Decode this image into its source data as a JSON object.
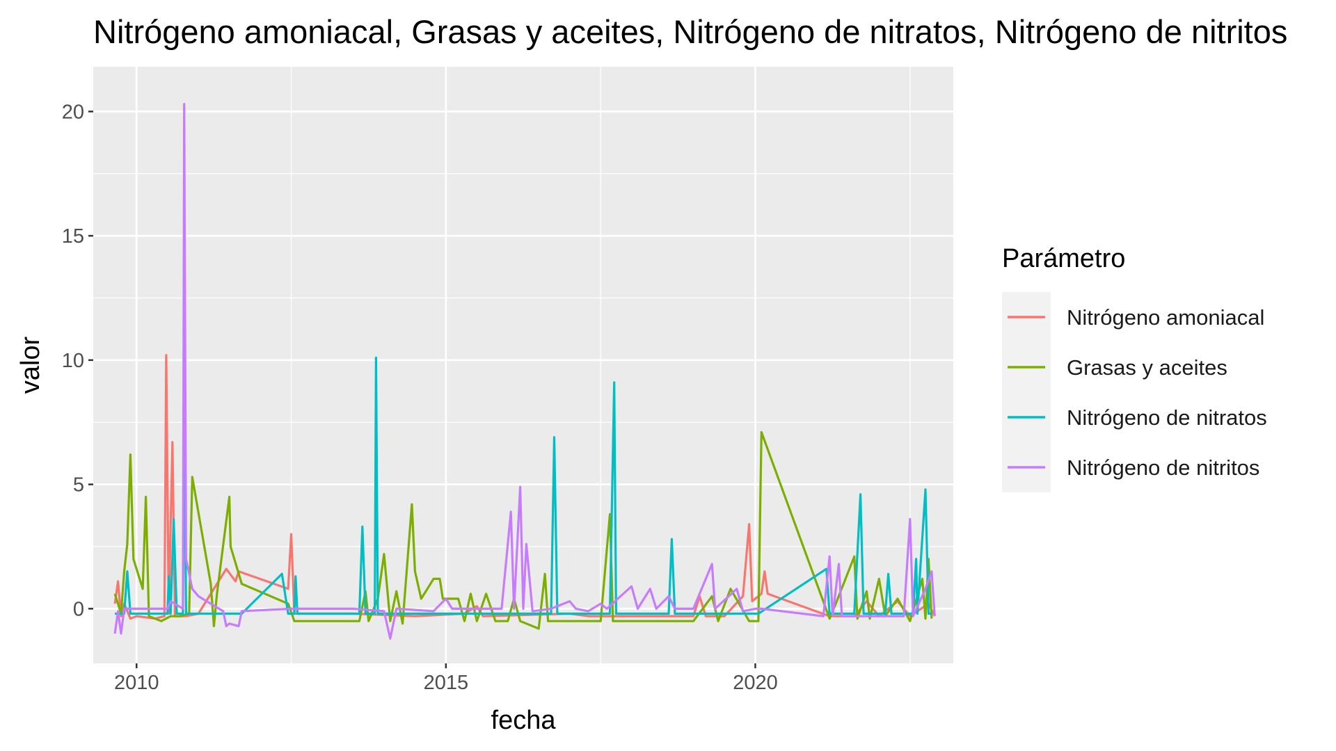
{
  "chart_data": {
    "type": "line",
    "title": "Nitrógeno amoniacal, Grasas y aceites, Nitrógeno de nitratos, Nitrógeno de nitritos",
    "xlabel": "fecha",
    "ylabel": "valor",
    "xlim": [
      2009.3,
      2023.2
    ],
    "ylim": [
      -2.2,
      21.8
    ],
    "x_ticks": [
      2010,
      2015,
      2020
    ],
    "x_tick_labels": [
      "2010",
      "2015",
      "2020"
    ],
    "y_ticks": [
      0,
      5,
      10,
      15,
      20
    ],
    "y_tick_labels": [
      "0",
      "5",
      "10",
      "15",
      "20"
    ],
    "grid": true,
    "legend": {
      "title": "Parámetro",
      "position": "right"
    },
    "series": [
      {
        "name": "Nitrógeno amoniacal",
        "color": "#F8766D",
        "points": [
          [
            2009.65,
            0.2
          ],
          [
            2009.7,
            1.1
          ],
          [
            2009.75,
            -0.3
          ],
          [
            2009.8,
            0.2
          ],
          [
            2009.9,
            -0.4
          ],
          [
            2010.0,
            -0.3
          ],
          [
            2010.3,
            -0.4
          ],
          [
            2010.45,
            -0.3
          ],
          [
            2010.48,
            10.2
          ],
          [
            2010.52,
            -0.2
          ],
          [
            2010.58,
            6.7
          ],
          [
            2010.62,
            -0.3
          ],
          [
            2010.8,
            -0.3
          ],
          [
            2011.0,
            -0.2
          ],
          [
            2011.3,
            1.0
          ],
          [
            2011.45,
            1.6
          ],
          [
            2011.6,
            1.1
          ],
          [
            2011.65,
            1.5
          ],
          [
            2012.45,
            0.8
          ],
          [
            2012.5,
            3.0
          ],
          [
            2012.55,
            -0.2
          ],
          [
            2013.5,
            -0.2
          ],
          [
            2014.5,
            -0.3
          ],
          [
            2015.3,
            -0.2
          ],
          [
            2015.5,
            0.1
          ],
          [
            2015.6,
            -0.3
          ],
          [
            2017.0,
            -0.2
          ],
          [
            2017.3,
            -0.3
          ],
          [
            2018.5,
            -0.3
          ],
          [
            2019.0,
            -0.3
          ],
          [
            2019.1,
            0.5
          ],
          [
            2019.2,
            -0.3
          ],
          [
            2019.5,
            -0.3
          ],
          [
            2019.8,
            0.5
          ],
          [
            2019.9,
            3.4
          ],
          [
            2019.95,
            0.3
          ],
          [
            2020.1,
            0.6
          ],
          [
            2020.15,
            1.5
          ],
          [
            2020.2,
            0.6
          ],
          [
            2021.2,
            -0.3
          ],
          [
            2021.6,
            -0.3
          ],
          [
            2021.8,
            0.3
          ],
          [
            2022.0,
            -0.3
          ],
          [
            2022.3,
            0.3
          ],
          [
            2022.5,
            -0.3
          ],
          [
            2022.8,
            0.2
          ],
          [
            2022.9,
            -0.3
          ]
        ]
      },
      {
        "name": "Grasas y aceites",
        "color": "#7CAE00",
        "points": [
          [
            2009.65,
            0.6
          ],
          [
            2009.75,
            -0.2
          ],
          [
            2009.8,
            1.5
          ],
          [
            2009.85,
            2.6
          ],
          [
            2009.9,
            6.2
          ],
          [
            2009.95,
            2.0
          ],
          [
            2010.1,
            0.8
          ],
          [
            2010.15,
            4.5
          ],
          [
            2010.2,
            -0.3
          ],
          [
            2010.4,
            -0.5
          ],
          [
            2010.55,
            -0.3
          ],
          [
            2010.7,
            -0.3
          ],
          [
            2010.85,
            -0.2
          ],
          [
            2010.9,
            5.3
          ],
          [
            2011.2,
            1.0
          ],
          [
            2011.25,
            -0.7
          ],
          [
            2011.3,
            0.6
          ],
          [
            2011.5,
            4.5
          ],
          [
            2011.52,
            2.5
          ],
          [
            2011.7,
            1.0
          ],
          [
            2012.45,
            0.2
          ],
          [
            2012.55,
            -0.5
          ],
          [
            2013.6,
            -0.5
          ],
          [
            2013.7,
            0.7
          ],
          [
            2013.75,
            -0.5
          ],
          [
            2013.9,
            0.4
          ],
          [
            2014.0,
            2.2
          ],
          [
            2014.1,
            -0.5
          ],
          [
            2014.2,
            0.7
          ],
          [
            2014.3,
            -0.6
          ],
          [
            2014.45,
            4.2
          ],
          [
            2014.5,
            1.5
          ],
          [
            2014.6,
            0.4
          ],
          [
            2014.7,
            0.8
          ],
          [
            2014.8,
            1.2
          ],
          [
            2014.9,
            1.2
          ],
          [
            2014.95,
            0.4
          ],
          [
            2015.2,
            0.4
          ],
          [
            2015.3,
            -0.5
          ],
          [
            2015.4,
            0.6
          ],
          [
            2015.5,
            -0.5
          ],
          [
            2015.65,
            0.6
          ],
          [
            2015.8,
            -0.5
          ],
          [
            2016.0,
            -0.5
          ],
          [
            2016.1,
            0.4
          ],
          [
            2016.2,
            -0.5
          ],
          [
            2016.5,
            -0.8
          ],
          [
            2016.6,
            1.4
          ],
          [
            2016.65,
            -0.5
          ],
          [
            2017.5,
            -0.5
          ],
          [
            2017.65,
            3.8
          ],
          [
            2017.7,
            -0.5
          ],
          [
            2018.5,
            -0.5
          ],
          [
            2019.0,
            -0.5
          ],
          [
            2019.3,
            0.5
          ],
          [
            2019.4,
            -0.5
          ],
          [
            2019.6,
            0.8
          ],
          [
            2019.9,
            -0.5
          ],
          [
            2020.05,
            -0.5
          ],
          [
            2020.1,
            7.1
          ],
          [
            2021.2,
            -0.4
          ],
          [
            2021.3,
            0.2
          ],
          [
            2021.6,
            2.1
          ],
          [
            2021.65,
            -0.4
          ],
          [
            2021.8,
            0.7
          ],
          [
            2021.85,
            -0.4
          ],
          [
            2022.0,
            1.2
          ],
          [
            2022.1,
            -0.3
          ],
          [
            2022.3,
            0.4
          ],
          [
            2022.5,
            -0.5
          ],
          [
            2022.7,
            1.2
          ],
          [
            2022.75,
            -0.4
          ],
          [
            2022.8,
            2.0
          ],
          [
            2022.85,
            -0.4
          ]
        ]
      },
      {
        "name": "Nitrógeno de nitratos",
        "color": "#00BFC4",
        "points": [
          [
            2009.65,
            -0.2
          ],
          [
            2009.8,
            -0.2
          ],
          [
            2009.85,
            1.5
          ],
          [
            2009.9,
            -0.2
          ],
          [
            2010.2,
            -0.2
          ],
          [
            2010.5,
            -0.2
          ],
          [
            2010.52,
            1.3
          ],
          [
            2010.55,
            -0.2
          ],
          [
            2010.6,
            3.6
          ],
          [
            2010.65,
            -0.2
          ],
          [
            2010.75,
            -0.2
          ],
          [
            2010.77,
            8.9
          ],
          [
            2010.8,
            -0.2
          ],
          [
            2011.5,
            -0.2
          ],
          [
            2011.7,
            -0.2
          ],
          [
            2012.35,
            1.4
          ],
          [
            2012.45,
            -0.2
          ],
          [
            2012.55,
            -0.2
          ],
          [
            2012.57,
            1.3
          ],
          [
            2012.6,
            -0.2
          ],
          [
            2013.6,
            -0.2
          ],
          [
            2013.65,
            3.3
          ],
          [
            2013.7,
            -0.2
          ],
          [
            2013.85,
            -0.2
          ],
          [
            2013.87,
            10.1
          ],
          [
            2013.9,
            -0.2
          ],
          [
            2015.5,
            -0.2
          ],
          [
            2016.7,
            -0.2
          ],
          [
            2016.75,
            6.9
          ],
          [
            2016.8,
            -0.2
          ],
          [
            2017.65,
            -0.2
          ],
          [
            2017.72,
            9.1
          ],
          [
            2017.75,
            -0.2
          ],
          [
            2018.6,
            -0.2
          ],
          [
            2018.65,
            2.8
          ],
          [
            2018.7,
            -0.2
          ],
          [
            2019.9,
            -0.2
          ],
          [
            2020.05,
            -0.2
          ],
          [
            2021.15,
            1.6
          ],
          [
            2021.2,
            -0.2
          ],
          [
            2021.6,
            -0.2
          ],
          [
            2021.7,
            4.6
          ],
          [
            2021.75,
            -0.2
          ],
          [
            2022.1,
            -0.2
          ],
          [
            2022.15,
            1.4
          ],
          [
            2022.2,
            -0.2
          ],
          [
            2022.55,
            -0.2
          ],
          [
            2022.6,
            2.0
          ],
          [
            2022.62,
            -0.2
          ],
          [
            2022.75,
            4.8
          ],
          [
            2022.8,
            -0.2
          ],
          [
            2022.85,
            -0.2
          ]
        ]
      },
      {
        "name": "Nitrógeno de nitritos",
        "color": "#C77CFF",
        "points": [
          [
            2009.65,
            -1.0
          ],
          [
            2009.7,
            -0.1
          ],
          [
            2009.75,
            -1.0
          ],
          [
            2009.8,
            0.0
          ],
          [
            2010.0,
            0.0
          ],
          [
            2010.5,
            0.0
          ],
          [
            2010.55,
            0.3
          ],
          [
            2010.75,
            0.0
          ],
          [
            2010.77,
            20.3
          ],
          [
            2010.8,
            2.0
          ],
          [
            2010.9,
            0.8
          ],
          [
            2011.0,
            0.5
          ],
          [
            2011.4,
            -0.1
          ],
          [
            2011.45,
            -0.7
          ],
          [
            2011.5,
            -0.6
          ],
          [
            2011.65,
            -0.7
          ],
          [
            2011.7,
            -0.1
          ],
          [
            2012.5,
            0.0
          ],
          [
            2013.5,
            0.0
          ],
          [
            2014.0,
            -0.1
          ],
          [
            2014.1,
            -1.2
          ],
          [
            2014.2,
            0.0
          ],
          [
            2014.8,
            -0.1
          ],
          [
            2015.0,
            0.4
          ],
          [
            2015.1,
            0.0
          ],
          [
            2015.9,
            0.0
          ],
          [
            2016.05,
            3.9
          ],
          [
            2016.1,
            0.0
          ],
          [
            2016.2,
            4.9
          ],
          [
            2016.25,
            0.0
          ],
          [
            2016.3,
            2.6
          ],
          [
            2016.4,
            -0.1
          ],
          [
            2016.7,
            0.0
          ],
          [
            2017.0,
            0.3
          ],
          [
            2017.1,
            0.0
          ],
          [
            2017.3,
            -0.1
          ],
          [
            2017.5,
            0.2
          ],
          [
            2017.6,
            0.0
          ],
          [
            2018.0,
            0.9
          ],
          [
            2018.1,
            0.0
          ],
          [
            2018.3,
            0.8
          ],
          [
            2018.4,
            0.0
          ],
          [
            2018.6,
            0.5
          ],
          [
            2018.7,
            0.0
          ],
          [
            2019.0,
            0.0
          ],
          [
            2019.3,
            1.8
          ],
          [
            2019.35,
            0.0
          ],
          [
            2019.7,
            0.8
          ],
          [
            2019.8,
            -0.1
          ],
          [
            2020.0,
            0.0
          ],
          [
            2020.1,
            0.0
          ],
          [
            2021.1,
            -0.3
          ],
          [
            2021.2,
            2.1
          ],
          [
            2021.25,
            -0.3
          ],
          [
            2021.35,
            1.8
          ],
          [
            2021.4,
            -0.3
          ],
          [
            2022.0,
            -0.3
          ],
          [
            2022.4,
            -0.3
          ],
          [
            2022.5,
            3.6
          ],
          [
            2022.55,
            -0.3
          ],
          [
            2022.75,
            0.8
          ],
          [
            2022.85,
            1.5
          ],
          [
            2022.9,
            -0.3
          ]
        ]
      }
    ]
  }
}
